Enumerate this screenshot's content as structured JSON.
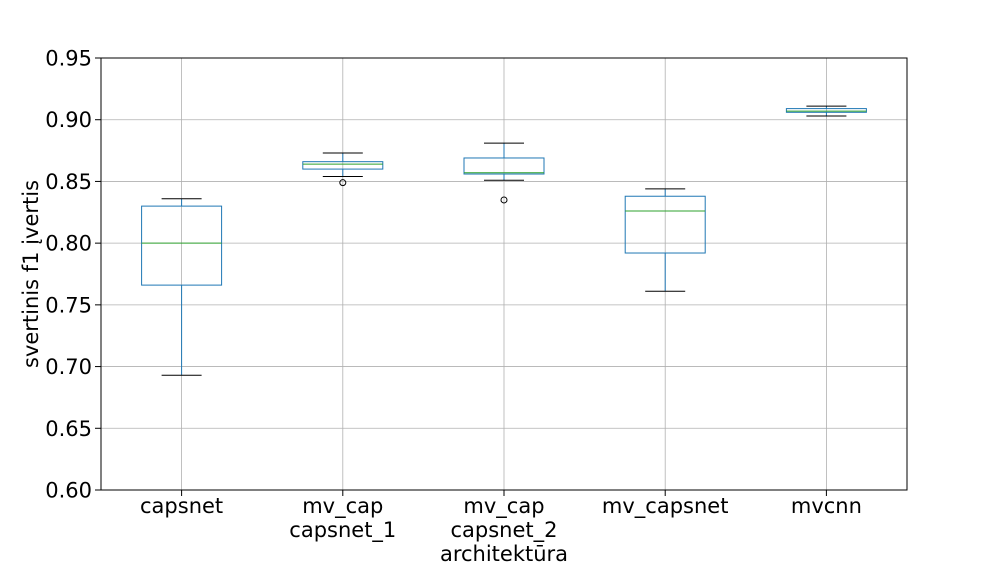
{
  "chart_data": {
    "type": "box",
    "xlabel": "architektūra",
    "ylabel": "svertinis f1 įvertis",
    "ylim": [
      0.6,
      0.95
    ],
    "yticks": [
      "0.60",
      "0.65",
      "0.70",
      "0.75",
      "0.80",
      "0.85",
      "0.90",
      "0.95"
    ],
    "grid": true,
    "colors": {
      "box": "#1f77b4",
      "median": "#2ca02c",
      "whisker": "#000000",
      "grid": "#b0b0b0"
    },
    "categories": [
      {
        "label_lines": [
          "capsnet"
        ],
        "whisker_low": 0.693,
        "q1": 0.766,
        "median": 0.8,
        "q3": 0.83,
        "whisker_high": 0.836,
        "outliers": []
      },
      {
        "label_lines": [
          "mv_cap",
          "capsnet_1"
        ],
        "whisker_low": 0.854,
        "q1": 0.86,
        "median": 0.864,
        "q3": 0.866,
        "whisker_high": 0.873,
        "outliers": [
          0.849
        ]
      },
      {
        "label_lines": [
          "mv_cap",
          "capsnet_2"
        ],
        "whisker_low": 0.851,
        "q1": 0.856,
        "median": 0.857,
        "q3": 0.869,
        "whisker_high": 0.881,
        "outliers": [
          0.835
        ]
      },
      {
        "label_lines": [
          "mv_capsnet"
        ],
        "whisker_low": 0.761,
        "q1": 0.792,
        "median": 0.826,
        "q3": 0.838,
        "whisker_high": 0.844,
        "outliers": []
      },
      {
        "label_lines": [
          "mvcnn"
        ],
        "whisker_low": 0.903,
        "q1": 0.906,
        "median": 0.907,
        "q3": 0.909,
        "whisker_high": 0.911,
        "outliers": []
      }
    ]
  }
}
